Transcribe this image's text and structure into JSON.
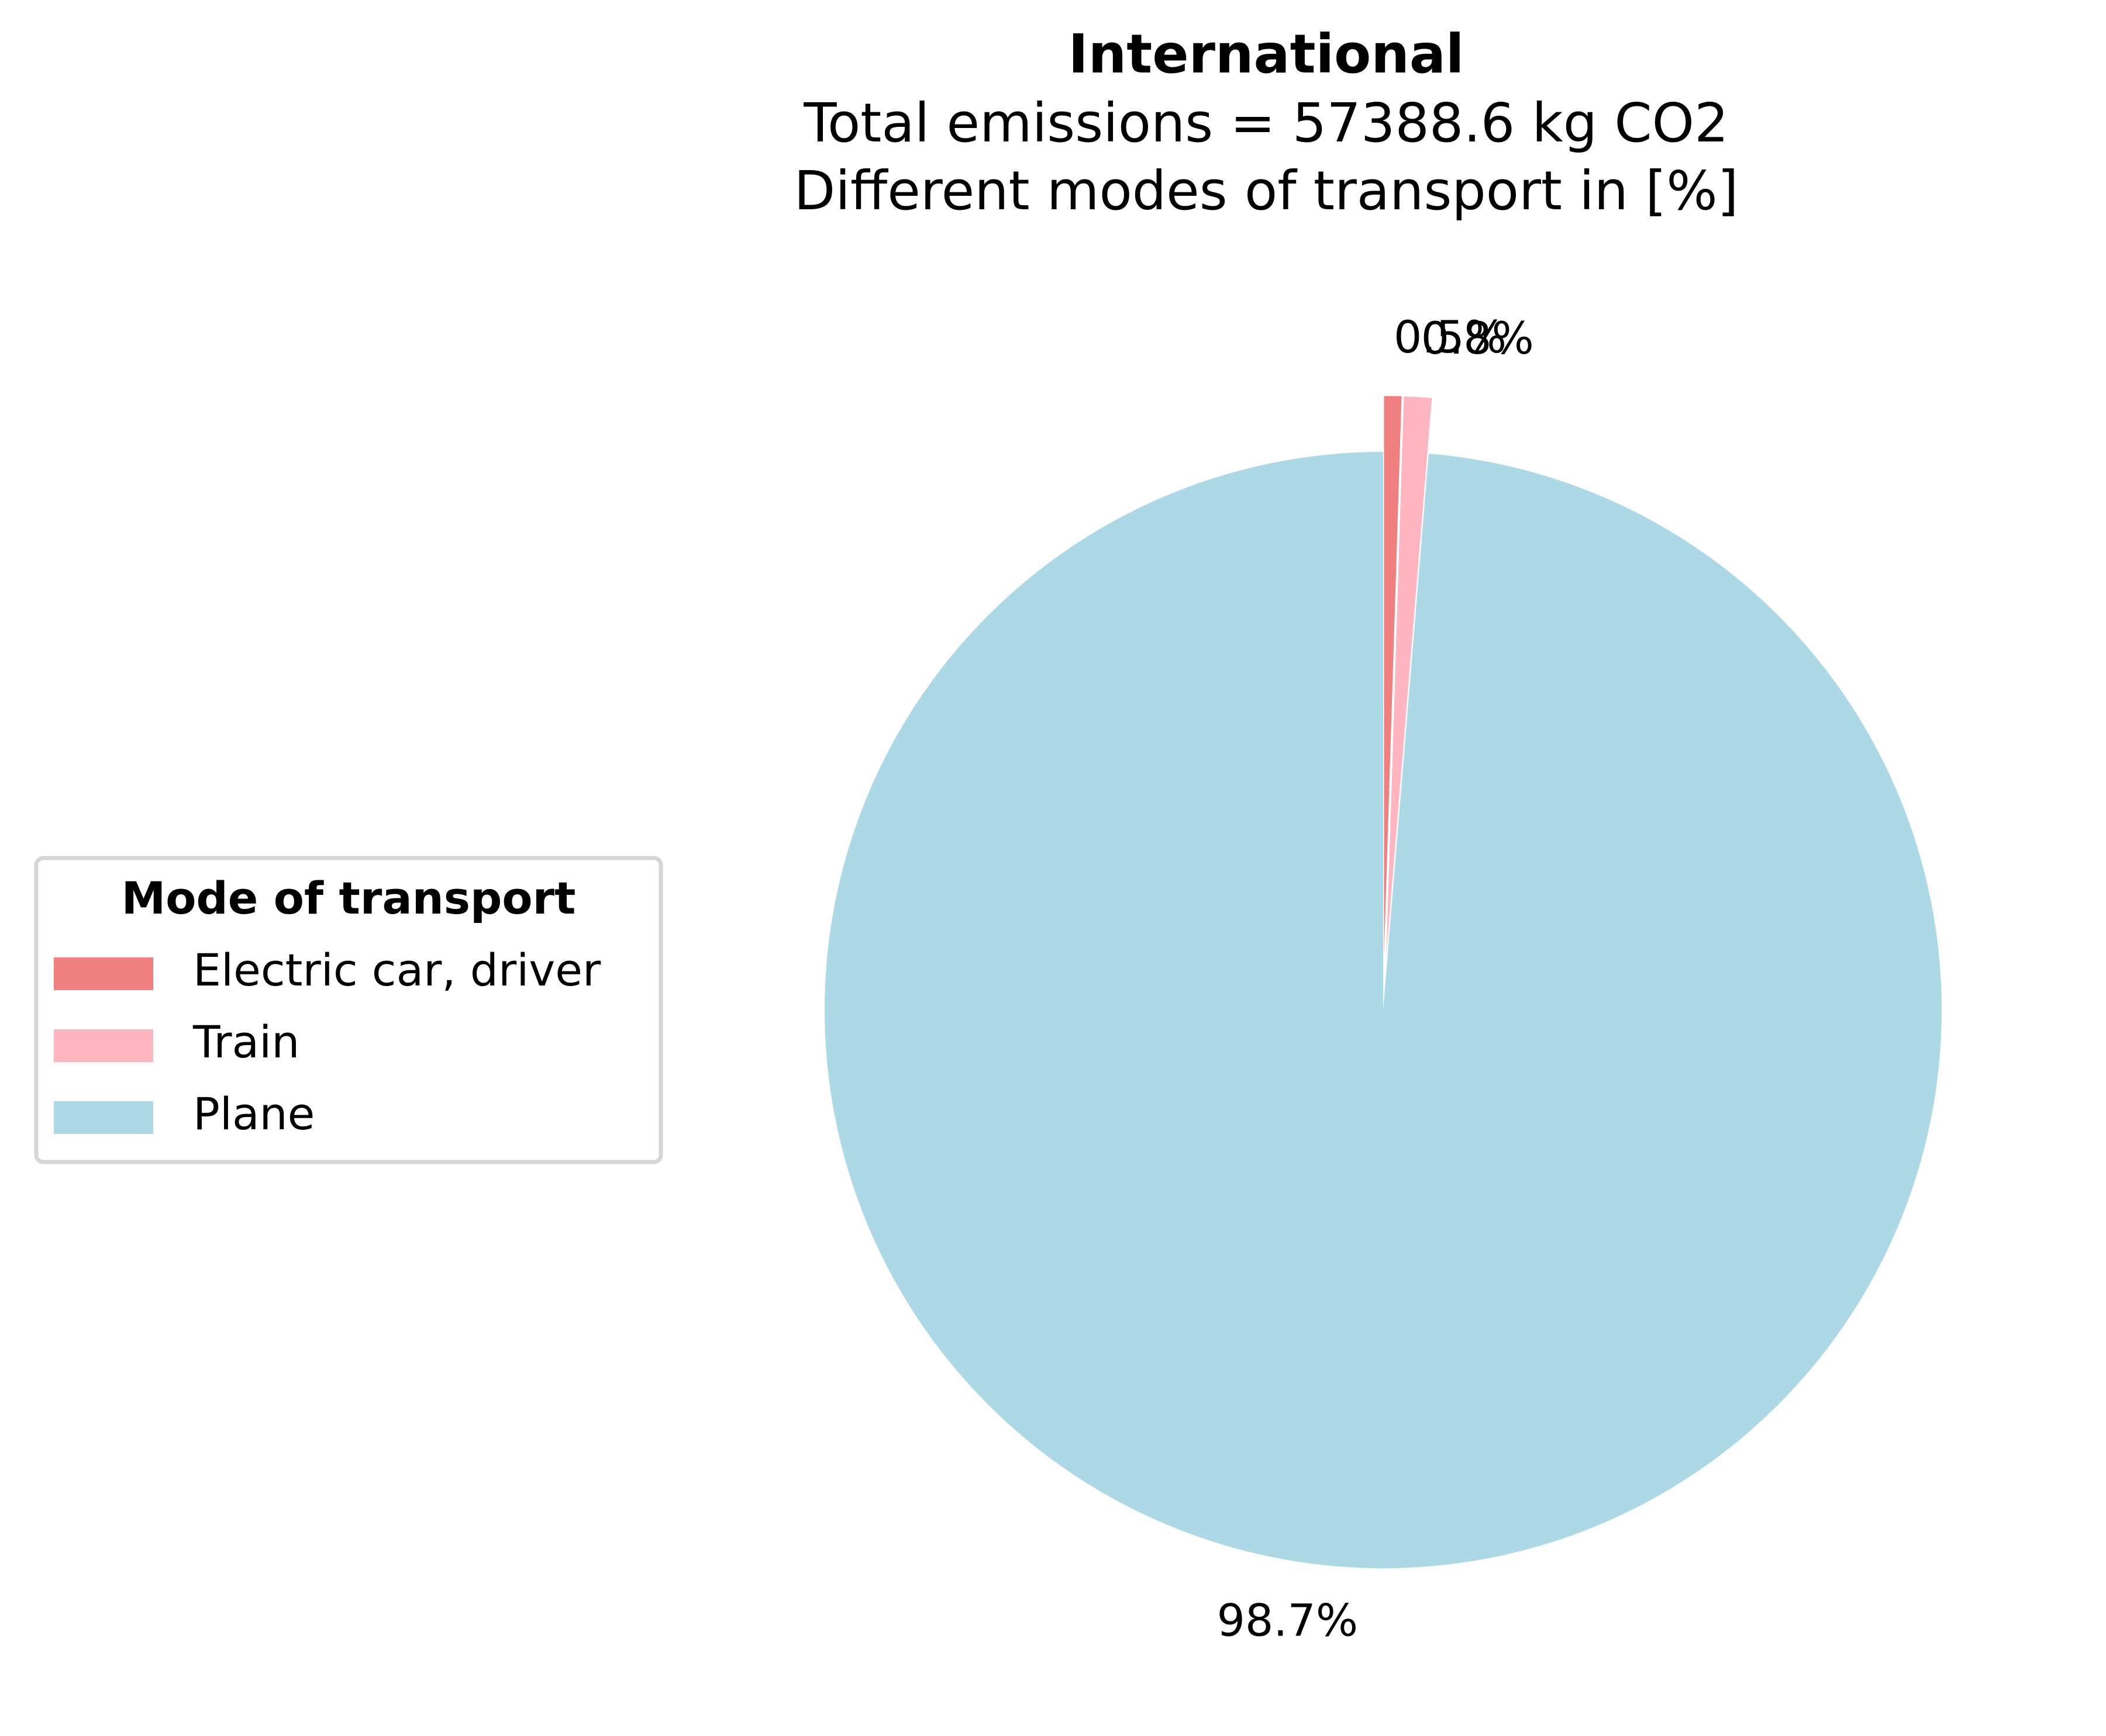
{
  "chart_data": {
    "type": "pie",
    "title": "International",
    "subtitle_lines": [
      "Total emissions = 57388.6 kg CO2",
      "Different modes of transport in [%]"
    ],
    "slices": [
      {
        "label": "Electric car, driver",
        "value": 0.5,
        "display": "0.5%",
        "color": "#f08080",
        "exploded": true
      },
      {
        "label": "Train",
        "value": 0.8,
        "display": "0.8%",
        "color": "#ffb6c1",
        "exploded": true
      },
      {
        "label": "Plane",
        "value": 98.7,
        "display": "98.7%",
        "color": "#add8e6",
        "exploded": false
      }
    ],
    "start_angle_deg": 90,
    "direction": "clockwise",
    "legend": {
      "title": "Mode of transport",
      "placement": "center-left",
      "items": [
        "Electric car, driver",
        "Train",
        "Plane"
      ]
    }
  }
}
